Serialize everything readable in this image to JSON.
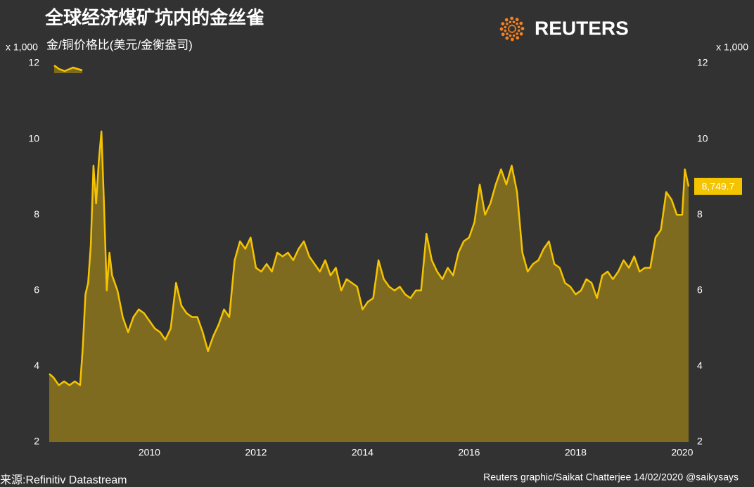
{
  "chart_data": {
    "type": "area",
    "title": "全球经济煤矿坑内的金丝雀",
    "subtitle": "金/铜价格比(美元/金衡盎司)",
    "y_unit": "x 1,000",
    "y2_unit": "x 1,000",
    "logo": "REUTERS",
    "source": "来源:Refinitiv Datastream",
    "credit": "Reuters graphic/Saikat Chatterjee 14/02/2020 @saikysays",
    "line_color": "#f5c400",
    "fill_color": "#7f6b1f",
    "label_color": "#f5c400",
    "background": "#323232",
    "xlim": [
      2008.12,
      2020.12
    ],
    "xticks": [
      2010,
      2012,
      2014,
      2016,
      2018,
      2020
    ],
    "ylim": [
      2,
      12
    ],
    "yticks": [
      2,
      4,
      6,
      8,
      10,
      12
    ],
    "y2lim": [
      2,
      12
    ],
    "y2ticks": [
      2,
      4,
      6,
      8,
      10,
      12
    ],
    "x": [
      2008.12,
      2008.2,
      2008.3,
      2008.4,
      2008.5,
      2008.6,
      2008.7,
      2008.75,
      2008.8,
      2008.85,
      2008.9,
      2008.95,
      2009,
      2009.05,
      2009.1,
      2009.15,
      2009.2,
      2009.25,
      2009.3,
      2009.4,
      2009.5,
      2009.6,
      2009.7,
      2009.8,
      2009.9,
      2010,
      2010.1,
      2010.2,
      2010.3,
      2010.4,
      2010.5,
      2010.6,
      2010.7,
      2010.8,
      2010.9,
      2011,
      2011.1,
      2011.2,
      2011.3,
      2011.4,
      2011.5,
      2011.6,
      2011.7,
      2011.8,
      2011.9,
      2012,
      2012.1,
      2012.2,
      2012.3,
      2012.4,
      2012.5,
      2012.6,
      2012.7,
      2012.8,
      2012.9,
      2013,
      2013.1,
      2013.2,
      2013.3,
      2013.4,
      2013.5,
      2013.6,
      2013.7,
      2013.8,
      2013.9,
      2014,
      2014.1,
      2014.2,
      2014.3,
      2014.4,
      2014.5,
      2014.6,
      2014.7,
      2014.8,
      2014.9,
      2015,
      2015.1,
      2015.2,
      2015.3,
      2015.4,
      2015.5,
      2015.6,
      2015.7,
      2015.8,
      2015.9,
      2016,
      2016.1,
      2016.2,
      2016.3,
      2016.4,
      2016.5,
      2016.6,
      2016.7,
      2016.8,
      2016.9,
      2017,
      2017.1,
      2017.2,
      2017.3,
      2017.4,
      2017.5,
      2017.6,
      2017.7,
      2017.8,
      2017.9,
      2018,
      2018.1,
      2018.2,
      2018.3,
      2018.4,
      2018.5,
      2018.6,
      2018.7,
      2018.8,
      2018.9,
      2019,
      2019.1,
      2019.2,
      2019.3,
      2019.4,
      2019.5,
      2019.6,
      2019.7,
      2019.8,
      2019.9,
      2020,
      2020.05,
      2020.12
    ],
    "values": [
      3.8,
      3.7,
      3.5,
      3.6,
      3.5,
      3.6,
      3.5,
      4.5,
      5.9,
      6.2,
      7.2,
      9.3,
      8.3,
      9.4,
      10.2,
      8.2,
      6.0,
      7.0,
      6.4,
      6.0,
      5.3,
      4.9,
      5.3,
      5.5,
      5.4,
      5.2,
      5.0,
      4.9,
      4.7,
      5.0,
      6.2,
      5.6,
      5.4,
      5.3,
      5.3,
      4.9,
      4.4,
      4.8,
      5.1,
      5.5,
      5.3,
      6.8,
      7.3,
      7.1,
      7.4,
      6.6,
      6.5,
      6.7,
      6.5,
      7.0,
      6.9,
      7.0,
      6.8,
      7.1,
      7.3,
      6.9,
      6.7,
      6.5,
      6.8,
      6.4,
      6.6,
      6.0,
      6.3,
      6.2,
      6.1,
      5.5,
      5.7,
      5.8,
      6.8,
      6.3,
      6.1,
      6.0,
      6.1,
      5.9,
      5.8,
      6.0,
      6.0,
      7.5,
      6.8,
      6.5,
      6.3,
      6.6,
      6.4,
      7.0,
      7.3,
      7.4,
      7.8,
      8.8,
      8.0,
      8.3,
      8.8,
      9.2,
      8.8,
      9.3,
      8.6,
      7.0,
      6.5,
      6.7,
      6.8,
      7.1,
      7.3,
      6.7,
      6.6,
      6.2,
      6.1,
      5.9,
      6.0,
      6.3,
      6.2,
      5.8,
      6.4,
      6.5,
      6.3,
      6.5,
      6.8,
      6.6,
      6.9,
      6.5,
      6.6,
      6.6,
      7.4,
      7.6,
      8.6,
      8.4,
      8.0,
      8.0,
      9.2,
      8.7497
    ],
    "value_labels": [
      null,
      null,
      null,
      null,
      null,
      null,
      null,
      null,
      null,
      null,
      null,
      null,
      null,
      null,
      null,
      null,
      null,
      null,
      null,
      null,
      null,
      null,
      null,
      null,
      null,
      null,
      null,
      null,
      null,
      null,
      null,
      null,
      null,
      null,
      null,
      null,
      null,
      null,
      null,
      null,
      null,
      null,
      null,
      null,
      null,
      null,
      null,
      null,
      null,
      null,
      null,
      null,
      null,
      null,
      null,
      null,
      null,
      null,
      null,
      null,
      null,
      null,
      null,
      null,
      null,
      null,
      null,
      null,
      null,
      null,
      null,
      null,
      null,
      null,
      null,
      null,
      null,
      null,
      null,
      null,
      null,
      null,
      null,
      null,
      null,
      null,
      null,
      null,
      null,
      null,
      null,
      null,
      null,
      null,
      null,
      null,
      null,
      null,
      null,
      null,
      null,
      null,
      null,
      null,
      null,
      null,
      null,
      null,
      null,
      null,
      null,
      null,
      null,
      null,
      null,
      null,
      null,
      null,
      null,
      null,
      null,
      null,
      null,
      null,
      null,
      null,
      null,
      "8,749.7"
    ]
  }
}
